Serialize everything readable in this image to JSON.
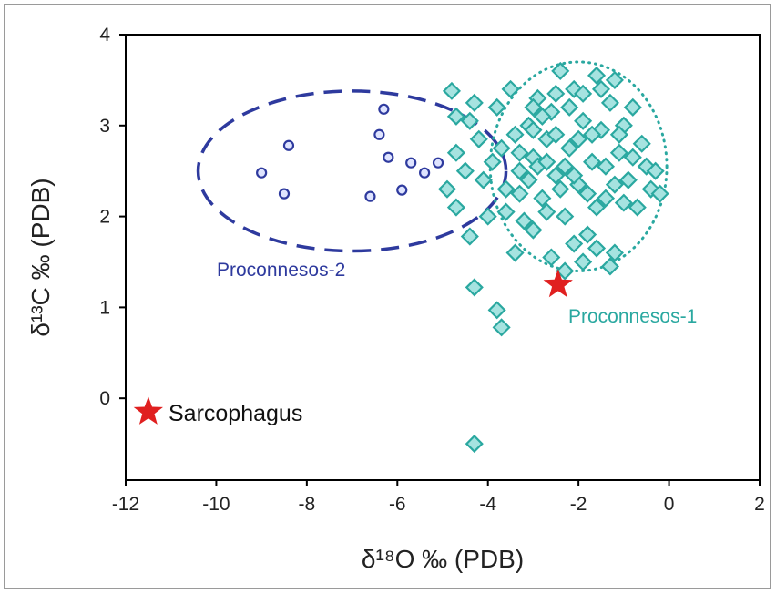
{
  "chart_data": {
    "type": "scatter",
    "title": "",
    "xlabel": "δ¹⁸O ‰ (PDB)",
    "ylabel": "δ¹³C ‰ (PDB)",
    "xlim": [
      -12,
      2
    ],
    "ylim": [
      -0.9,
      4
    ],
    "x_ticks": [
      -12,
      -10,
      -8,
      -6,
      -4,
      -2,
      0,
      2
    ],
    "y_ticks": [
      0,
      1,
      2,
      3,
      4
    ],
    "grid": false,
    "series": [
      {
        "name": "Proconnesos-2",
        "marker": "circle",
        "color": "#2e3a9e",
        "points": [
          [
            -9.0,
            2.48
          ],
          [
            -8.5,
            2.25
          ],
          [
            -8.4,
            2.78
          ],
          [
            -6.6,
            2.22
          ],
          [
            -6.4,
            2.9
          ],
          [
            -6.3,
            3.18
          ],
          [
            -6.2,
            2.65
          ],
          [
            -5.9,
            2.29
          ],
          [
            -5.7,
            2.59
          ],
          [
            -5.4,
            2.48
          ],
          [
            -5.1,
            2.59
          ]
        ]
      },
      {
        "name": "Proconnesos-1",
        "marker": "diamond",
        "color": "#2aa8a0",
        "points": [
          [
            -4.8,
            3.38
          ],
          [
            -4.7,
            3.1
          ],
          [
            -4.7,
            2.7
          ],
          [
            -4.9,
            2.3
          ],
          [
            -4.7,
            2.1
          ],
          [
            -4.5,
            2.5
          ],
          [
            -4.4,
            3.05
          ],
          [
            -4.3,
            3.25
          ],
          [
            -4.2,
            2.85
          ],
          [
            -4.1,
            2.4
          ],
          [
            -4.0,
            2.0
          ],
          [
            -3.9,
            2.6
          ],
          [
            -3.8,
            3.2
          ],
          [
            -3.7,
            2.75
          ],
          [
            -3.6,
            2.3
          ],
          [
            -3.5,
            3.4
          ],
          [
            -3.4,
            2.9
          ],
          [
            -3.3,
            2.5
          ],
          [
            -3.2,
            1.95
          ],
          [
            -3.1,
            3.0
          ],
          [
            -3.0,
            2.65
          ],
          [
            -2.9,
            3.3
          ],
          [
            -2.8,
            2.2
          ],
          [
            -2.7,
            2.85
          ],
          [
            -2.6,
            3.15
          ],
          [
            -2.5,
            2.45
          ],
          [
            -2.4,
            3.6
          ],
          [
            -2.3,
            2.0
          ],
          [
            -2.2,
            2.75
          ],
          [
            -2.1,
            3.4
          ],
          [
            -2.0,
            2.35
          ],
          [
            -1.9,
            3.05
          ],
          [
            -1.8,
            1.8
          ],
          [
            -1.7,
            2.6
          ],
          [
            -1.6,
            3.55
          ],
          [
            -1.5,
            2.95
          ],
          [
            -1.4,
            2.2
          ],
          [
            -1.3,
            3.25
          ],
          [
            -1.2,
            1.6
          ],
          [
            -1.1,
            2.7
          ],
          [
            -1.0,
            3.0
          ],
          [
            -0.9,
            2.4
          ],
          [
            -0.8,
            3.2
          ],
          [
            -0.7,
            2.1
          ],
          [
            -0.6,
            2.8
          ],
          [
            -0.5,
            2.55
          ],
          [
            -0.4,
            2.3
          ],
          [
            -0.3,
            2.5
          ],
          [
            -0.2,
            2.25
          ],
          [
            -2.6,
            1.55
          ],
          [
            -2.3,
            1.4
          ],
          [
            -2.1,
            1.7
          ],
          [
            -1.9,
            1.5
          ],
          [
            -1.6,
            1.65
          ],
          [
            -1.3,
            1.45
          ],
          [
            -3.0,
            1.85
          ],
          [
            -3.4,
            1.6
          ],
          [
            -2.7,
            2.05
          ],
          [
            -2.4,
            2.3
          ],
          [
            -3.6,
            2.05
          ],
          [
            -3.3,
            2.25
          ],
          [
            -3.0,
            3.2
          ],
          [
            -2.8,
            3.1
          ],
          [
            -2.5,
            3.35
          ],
          [
            -2.2,
            3.2
          ],
          [
            -1.9,
            3.35
          ],
          [
            -1.5,
            3.4
          ],
          [
            -1.2,
            3.5
          ],
          [
            -3.3,
            2.7
          ],
          [
            -3.1,
            2.4
          ],
          [
            -2.9,
            2.55
          ],
          [
            -2.5,
            2.9
          ],
          [
            -2.3,
            2.55
          ],
          [
            -2.0,
            2.85
          ],
          [
            -1.8,
            2.25
          ],
          [
            -1.6,
            2.1
          ],
          [
            -1.4,
            2.55
          ],
          [
            -1.2,
            2.35
          ],
          [
            -1.0,
            2.15
          ],
          [
            -0.8,
            2.65
          ],
          [
            -4.4,
            1.78
          ],
          [
            -4.3,
            1.22
          ],
          [
            -3.8,
            0.97
          ],
          [
            -3.7,
            0.78
          ],
          [
            -4.3,
            -0.5
          ],
          [
            -3.0,
            2.95
          ],
          [
            -2.7,
            2.6
          ],
          [
            -2.1,
            2.45
          ],
          [
            -1.7,
            2.9
          ],
          [
            -1.1,
            2.9
          ]
        ]
      },
      {
        "name": "Sarcophagus",
        "marker": "star",
        "color": "#e02020",
        "points": [
          [
            -11.5,
            -0.15
          ]
        ]
      },
      {
        "name": "",
        "marker": "star",
        "color": "#e02020",
        "points": [
          [
            -2.45,
            1.25
          ]
        ]
      }
    ],
    "ellipses": [
      {
        "group": "Proconnesos-2",
        "cx": -7.0,
        "cy": 2.5,
        "rx": 3.4,
        "ry": 0.88,
        "style": "dashed",
        "color": "#2e3a9e"
      },
      {
        "group": "Proconnesos-1",
        "cx": -2.0,
        "cy": 2.55,
        "rx": 1.95,
        "ry": 1.15,
        "style": "dotted",
        "color": "#2aa8a0"
      }
    ],
    "annotations": [
      {
        "text": "Proconnesos-2",
        "color": "#2e3a9e"
      },
      {
        "text": "Proconnesos-1",
        "color": "#2aa8a0"
      },
      {
        "text": "Sarcophagus",
        "color": "#111111"
      }
    ]
  }
}
